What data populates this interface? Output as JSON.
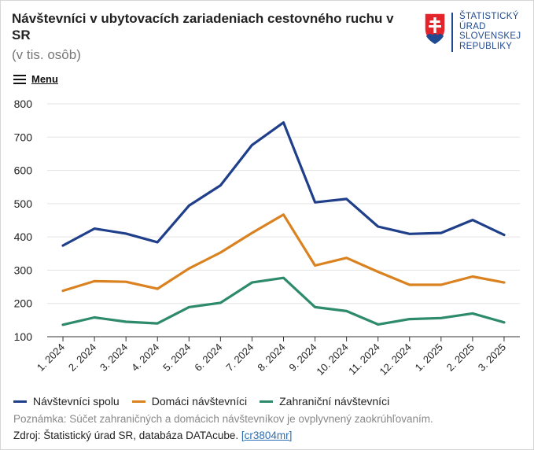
{
  "header": {
    "title": "Návštevníci v ubytovacích zariadeniach cestovného ruchu v SR",
    "subtitle": "(v tis. osôb)"
  },
  "logo": {
    "lines": [
      "ŠTATISTICKÝ",
      "ÚRAD",
      "SLOVENSKEJ",
      "REPUBLIKY"
    ]
  },
  "menu": {
    "label": "Menu"
  },
  "chart_data": {
    "type": "line",
    "title": "Návštevníci v ubytovacích zariadeniach cestovného ruchu v SR",
    "ylabel": "(v tis. osôb)",
    "xlabel": "",
    "categories": [
      "1. 2024",
      "2. 2024",
      "3. 2024",
      "4. 2024",
      "5. 2024",
      "6. 2024",
      "7. 2024",
      "8. 2024",
      "9. 2024",
      "10. 2024",
      "11. 2024",
      "12. 2024",
      "1. 2025",
      "2. 2025",
      "3. 2025"
    ],
    "ylim": [
      100,
      800
    ],
    "yticks": [
      "100",
      "200",
      "300",
      "400",
      "500",
      "600",
      "700",
      "800"
    ],
    "grid": true,
    "legend": "bottom",
    "series": [
      {
        "name": "Návštevníci spolu",
        "color": "#1f3f8a",
        "values": [
          374,
          425,
          410,
          384,
          494,
          555,
          676,
          744,
          504,
          514,
          431,
          409,
          412,
          451,
          406
        ]
      },
      {
        "name": "Domáci návštevníci",
        "color": "#d9821f",
        "values": [
          238,
          267,
          265,
          244,
          305,
          353,
          412,
          467,
          314,
          337,
          295,
          256,
          256,
          281,
          263
        ]
      },
      {
        "name": "Zahraniční návštevníci",
        "color": "#2d8a6a",
        "values": [
          136,
          158,
          145,
          140,
          189,
          202,
          263,
          277,
          189,
          177,
          137,
          153,
          156,
          170,
          143
        ]
      }
    ]
  },
  "footer": {
    "note": "Poznámka: Súčet zahraničných a domácich návštevníkov je ovplyvnený zaokrúhľovaním.",
    "source_prefix": "Zdroj: Štatistický úrad SR, databáza DATAcube. ",
    "source_link": "[cr3804mr]"
  },
  "colors": {
    "logo_blue": "#1f4a91",
    "logo_red": "#e3242b"
  }
}
